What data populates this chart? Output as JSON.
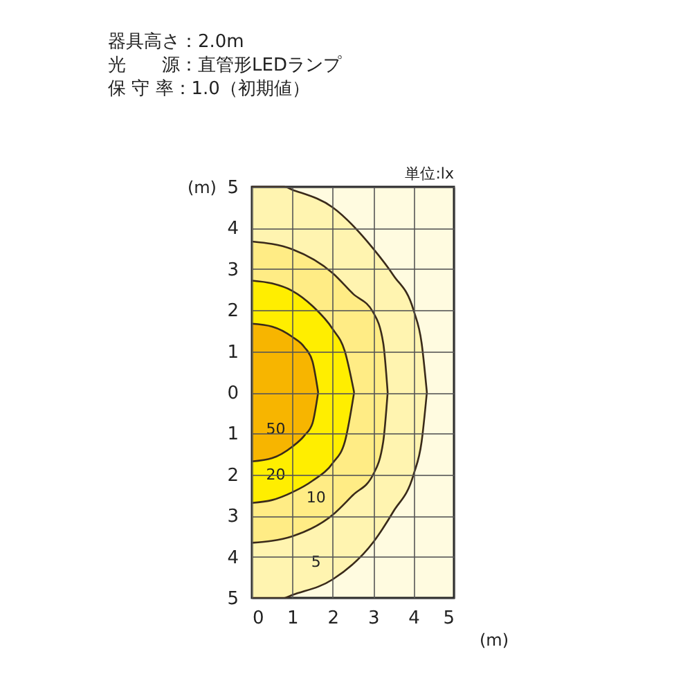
{
  "chart_data": {
    "type": "area",
    "annotations": [
      "器具高さ：2.0m",
      "光　　源：直管形LEDランプ",
      "保 守 率：1.0（初期値）"
    ],
    "legend_title": "単位:lx",
    "xlabel": "(m)",
    "ylabel": "(m)",
    "xlim": [
      0,
      5
    ],
    "xticks": [
      0,
      1,
      2,
      3,
      4,
      5
    ],
    "ylim": [
      -5,
      5
    ],
    "yticks": [
      {
        "value": -5,
        "label": "5"
      },
      {
        "value": -4,
        "label": "4"
      },
      {
        "value": -3,
        "label": "3"
      },
      {
        "value": -2,
        "label": "2"
      },
      {
        "value": -1,
        "label": "1"
      },
      0,
      1,
      2,
      3,
      4,
      5
    ],
    "grid": true,
    "series": [
      {
        "color": "#fff4b0",
        "x": [
          0,
          0.8,
          1,
          2,
          3,
          3.5,
          4,
          4.2,
          4.33
        ],
        "values": [
          5,
          5,
          4.93,
          4.5,
          3.5,
          2.85,
          2.0,
          1.2,
          0
        ]
      },
      {
        "name": "5",
        "color": "#fff4b0",
        "x": [
          0,
          0.8,
          1,
          2,
          3,
          3.5,
          4,
          4.2,
          4.33
        ],
        "values": [
          -5,
          -5,
          -4.93,
          -4.55,
          -3.65,
          -2.9,
          -2.0,
          -1.2,
          0
        ]
      },
      {
        "color": "#ffec85",
        "x": [
          0,
          1,
          2,
          2.5,
          3,
          3.25,
          3.36
        ],
        "values": [
          3.67,
          3.48,
          2.9,
          2.4,
          1.95,
          1.2,
          0
        ]
      },
      {
        "name": "10",
        "color": "#ffec85",
        "x": [
          0,
          1,
          2,
          2.5,
          3,
          3.25,
          3.36
        ],
        "values": [
          -3.66,
          -3.5,
          -2.98,
          -2.5,
          -2.0,
          -1.2,
          0
        ]
      },
      {
        "color": "#ffee00",
        "x": [
          0,
          0.5,
          1,
          1.5,
          2,
          2.3,
          2.53
        ],
        "values": [
          2.72,
          2.65,
          2.47,
          2.1,
          1.54,
          1.0,
          0
        ]
      },
      {
        "name": "20",
        "color": "#ffee00",
        "x": [
          0,
          0.5,
          1,
          1.5,
          2,
          2.3,
          2.53
        ],
        "values": [
          -2.69,
          -2.62,
          -2.43,
          -2.15,
          -1.72,
          -1.2,
          0
        ]
      },
      {
        "color": "#f7b500",
        "x": [
          0,
          0.5,
          1,
          1.3,
          1.5,
          1.64
        ],
        "values": [
          1.67,
          1.6,
          1.35,
          1.1,
          0.75,
          0
        ]
      },
      {
        "name": "50",
        "color": "#f7b500",
        "x": [
          0,
          0.5,
          1,
          1.3,
          1.5,
          1.64
        ],
        "values": [
          -1.68,
          -1.6,
          -1.32,
          -1.05,
          -0.75,
          0
        ]
      }
    ]
  }
}
